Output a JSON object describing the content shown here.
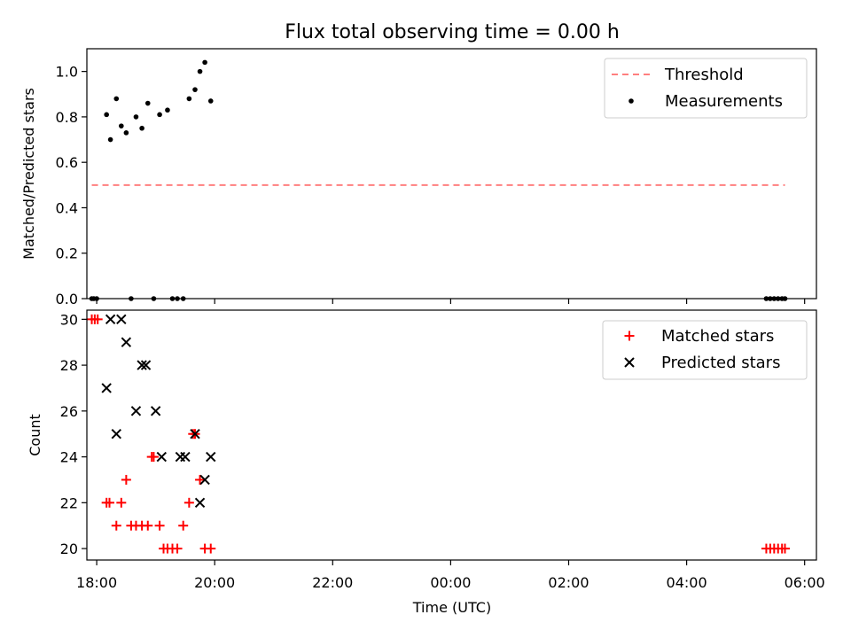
{
  "chart_data": [
    {
      "type": "scatter",
      "title": "Flux total observing time = 0.00 h",
      "ylabel": "Matched/Predicted stars",
      "xlabel": "",
      "xlim": [
        "17:50",
        "06:12"
      ],
      "ylim": [
        0,
        1.1
      ],
      "yticks": [
        "0.0",
        "0.2",
        "0.4",
        "0.6",
        "0.8",
        "1.0"
      ],
      "legend_position": "upper right",
      "threshold": {
        "name": "Threshold",
        "y": 0.5,
        "x": [
          "17:55",
          "05:40"
        ],
        "color": "#ff7f7f",
        "style": "dashed"
      },
      "series": [
        {
          "name": "Measurements",
          "color": "#000000",
          "marker": "dot",
          "x": [
            "17:55",
            "17:57",
            "18:00",
            "18:10",
            "18:14",
            "18:20",
            "18:25",
            "18:30",
            "18:35",
            "18:40",
            "18:46",
            "18:52",
            "18:58",
            "19:04",
            "19:12",
            "19:17",
            "19:22",
            "19:28",
            "19:34",
            "19:40",
            "19:45",
            "19:50",
            "19:56",
            "05:21",
            "05:25",
            "05:29",
            "05:33",
            "05:37",
            "05:40"
          ],
          "y": [
            0.0,
            0.0,
            0.0,
            0.81,
            0.7,
            0.88,
            0.76,
            0.73,
            0.0,
            0.8,
            0.75,
            0.86,
            0.0,
            0.81,
            0.83,
            0.0,
            0.0,
            0.0,
            0.88,
            0.92,
            1.0,
            1.04,
            0.87,
            0.0,
            0.0,
            0.0,
            0.0,
            0.0,
            0.0
          ]
        }
      ]
    },
    {
      "type": "scatter",
      "title": "",
      "xlabel": "Time (UTC)",
      "ylabel": "Count",
      "xlim": [
        "17:50",
        "06:12"
      ],
      "ylim": [
        19.5,
        30.4
      ],
      "yticks": [
        "20",
        "22",
        "24",
        "26",
        "28",
        "30"
      ],
      "xticks": [
        "18:00",
        "20:00",
        "22:00",
        "00:00",
        "02:00",
        "04:00",
        "06:00"
      ],
      "legend_position": "upper right",
      "series": [
        {
          "name": "Matched stars",
          "color": "#ff0000",
          "marker": "plus",
          "x": [
            "17:55",
            "17:58",
            "18:01",
            "18:10",
            "18:13",
            "18:20",
            "18:25",
            "18:30",
            "18:35",
            "18:40",
            "18:46",
            "18:52",
            "18:56",
            "18:58",
            "19:04",
            "19:08",
            "19:12",
            "19:17",
            "19:22",
            "19:28",
            "19:34",
            "19:38",
            "19:40",
            "19:45",
            "19:50",
            "19:56",
            "05:21",
            "05:25",
            "05:29",
            "05:33",
            "05:37",
            "05:40"
          ],
          "y": [
            30,
            30,
            30,
            22,
            22,
            21,
            22,
            23,
            21,
            21,
            21,
            21,
            24,
            24,
            21,
            20,
            20,
            20,
            20,
            21,
            22,
            25,
            25,
            23,
            20,
            20,
            20,
            20,
            20,
            20,
            20,
            20
          ]
        },
        {
          "name": "Predicted stars",
          "color": "#000000",
          "marker": "x",
          "x": [
            "18:10",
            "18:14",
            "18:20",
            "18:25",
            "18:30",
            "18:40",
            "18:46",
            "18:50",
            "19:00",
            "19:06",
            "19:25",
            "19:30",
            "19:40",
            "19:45",
            "19:50",
            "19:56"
          ],
          "y": [
            27,
            30,
            25,
            30,
            29,
            26,
            28,
            28,
            26,
            24,
            24,
            24,
            25,
            22,
            23,
            24
          ]
        }
      ]
    }
  ]
}
